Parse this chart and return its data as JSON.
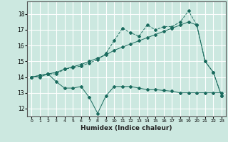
{
  "xlabel": "Humidex (Indice chaleur)",
  "line_color": "#1a6b5e",
  "bg_color": "#cce8e0",
  "grid_color": "#ffffff",
  "ylim": [
    11.5,
    18.8
  ],
  "xlim": [
    -0.5,
    23.5
  ],
  "yticks": [
    12,
    13,
    14,
    15,
    16,
    17,
    18
  ],
  "xticks": [
    0,
    1,
    2,
    3,
    4,
    5,
    6,
    7,
    8,
    9,
    10,
    11,
    12,
    13,
    14,
    15,
    16,
    17,
    18,
    19,
    20,
    21,
    22,
    23
  ],
  "line1_x": [
    0,
    1,
    2,
    3,
    4,
    5,
    6,
    7,
    8,
    9,
    10,
    11,
    12,
    13,
    14,
    15,
    16,
    17,
    18,
    19,
    20,
    21,
    22,
    23
  ],
  "line1_y": [
    14.0,
    14.1,
    14.2,
    14.2,
    14.5,
    14.6,
    14.7,
    14.9,
    15.1,
    15.5,
    16.3,
    17.1,
    16.8,
    16.6,
    17.3,
    17.0,
    17.2,
    17.2,
    17.5,
    18.2,
    17.3,
    15.0,
    14.3,
    12.8
  ],
  "line2_x": [
    0,
    1,
    2,
    3,
    4,
    5,
    6,
    7,
    8,
    9,
    10,
    11,
    12,
    13,
    14,
    15,
    16,
    17,
    18,
    19,
    20,
    21,
    22,
    23
  ],
  "line2_y": [
    14.0,
    14.1,
    14.2,
    14.3,
    14.5,
    14.65,
    14.8,
    15.0,
    15.2,
    15.4,
    15.7,
    15.9,
    16.1,
    16.3,
    16.5,
    16.7,
    16.9,
    17.1,
    17.3,
    17.5,
    17.3,
    15.0,
    14.3,
    12.8
  ],
  "line3_x": [
    0,
    1,
    2,
    3,
    4,
    5,
    6,
    7,
    8,
    9,
    10,
    11,
    12,
    13,
    14,
    15,
    16,
    17,
    18,
    19,
    20,
    21,
    22,
    23
  ],
  "line3_y": [
    14.0,
    14.0,
    14.2,
    13.7,
    13.3,
    13.3,
    13.4,
    12.7,
    11.7,
    12.8,
    13.4,
    13.4,
    13.4,
    13.3,
    13.2,
    13.2,
    13.15,
    13.1,
    13.0,
    13.0,
    13.0,
    13.0,
    13.0,
    13.0
  ]
}
